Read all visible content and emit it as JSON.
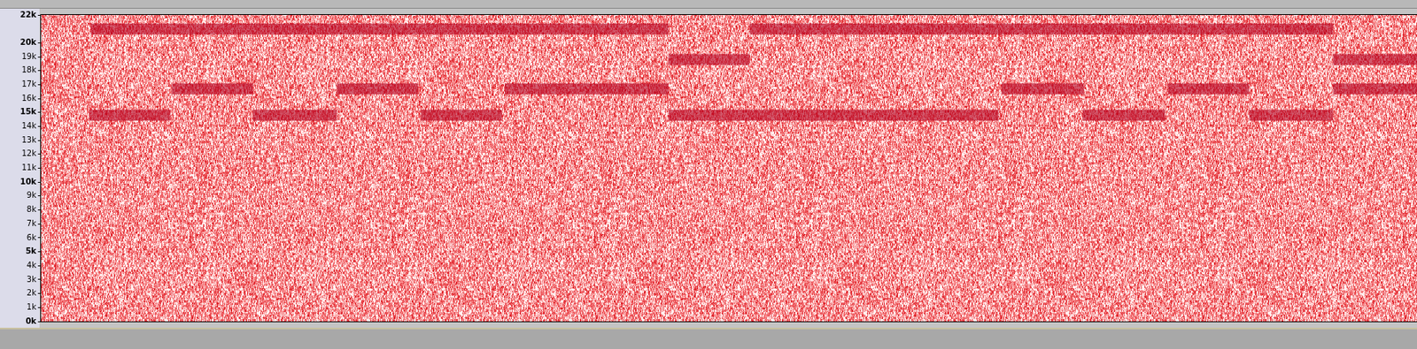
{
  "chart_data": {
    "type": "spectrogram",
    "xlim": [
      0,
      100
    ],
    "ylim": [
      0,
      22000
    ],
    "yticks": [
      {
        "value": 0,
        "label": "0k"
      },
      {
        "value": 1000,
        "label": "1k"
      },
      {
        "value": 2000,
        "label": "2k"
      },
      {
        "value": 3000,
        "label": "3k"
      },
      {
        "value": 4000,
        "label": "4k"
      },
      {
        "value": 5000,
        "label": "5k"
      },
      {
        "value": 6000,
        "label": "6k"
      },
      {
        "value": 7000,
        "label": "7k"
      },
      {
        "value": 8000,
        "label": "8k"
      },
      {
        "value": 9000,
        "label": "9k"
      },
      {
        "value": 10000,
        "label": "10k"
      },
      {
        "value": 11000,
        "label": "11k"
      },
      {
        "value": 12000,
        "label": "12k"
      },
      {
        "value": 13000,
        "label": "13k"
      },
      {
        "value": 14000,
        "label": "14k"
      },
      {
        "value": 15000,
        "label": "15k"
      },
      {
        "value": 16000,
        "label": "16k"
      },
      {
        "value": 17000,
        "label": "17k"
      },
      {
        "value": 18000,
        "label": "18k"
      },
      {
        "value": 19000,
        "label": "19k"
      },
      {
        "value": 20000,
        "label": "20k"
      },
      {
        "value": 22000,
        "label": "22k"
      }
    ],
    "tick_labels": "y",
    "grid": false,
    "color": "#b4001e",
    "segments": [
      {
        "x": [
          3.6,
          45.6
        ],
        "y": 21000
      },
      {
        "x": [
          51.5,
          93.9
        ],
        "y": 21000
      },
      {
        "x": [
          45.6,
          51.5
        ],
        "y": 18800
      },
      {
        "x": [
          93.9,
          100
        ],
        "y": 18800
      },
      {
        "x": [
          9.5,
          15.4
        ],
        "y": 16700
      },
      {
        "x": [
          21.5,
          27.4
        ],
        "y": 16700
      },
      {
        "x": [
          33.7,
          45.6
        ],
        "y": 16700
      },
      {
        "x": [
          69.8,
          75.8
        ],
        "y": 16700
      },
      {
        "x": [
          81.9,
          87.8
        ],
        "y": 16700
      },
      {
        "x": [
          93.9,
          100
        ],
        "y": 16700
      },
      {
        "x": [
          3.5,
          9.4
        ],
        "y": 14800
      },
      {
        "x": [
          15.4,
          21.5
        ],
        "y": 14800
      },
      {
        "x": [
          27.6,
          33.5
        ],
        "y": 14800
      },
      {
        "x": [
          45.6,
          69.6
        ],
        "y": 14800
      },
      {
        "x": [
          75.7,
          81.7
        ],
        "y": 14800
      },
      {
        "x": [
          87.8,
          93.9
        ],
        "y": 14800
      }
    ]
  }
}
